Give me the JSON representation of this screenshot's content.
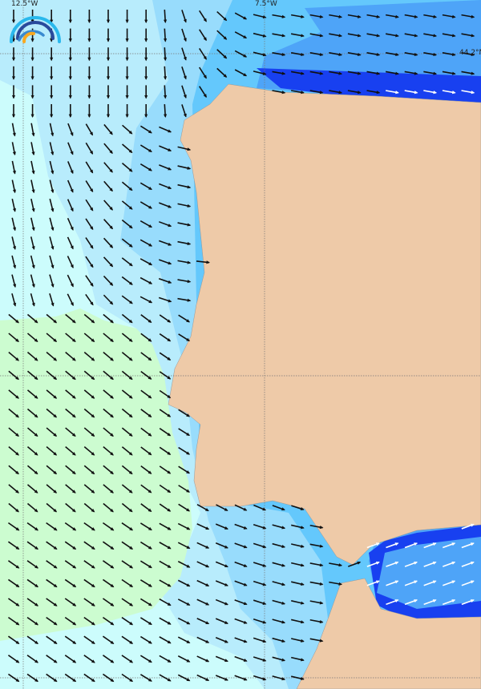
{
  "map": {
    "grid_labels": {
      "lon_left": "12.5°W",
      "lon_mid": "7.5°W",
      "lat_top": "44.2°N"
    },
    "colors": {
      "land": "#eecaa8",
      "sea_lightest": "#ccfcfc",
      "sea_light": "#b8ecfc",
      "sea_mid": "#98dcfc",
      "sea_blue": "#64c8fc",
      "sea_deep": "#4ea4f8",
      "sea_darkest": "#1840f0",
      "low_green": "#ccfcd0"
    },
    "legend_icon": "wave-logo-icon",
    "arrow_icon": "wind-direction-arrow-icon"
  }
}
